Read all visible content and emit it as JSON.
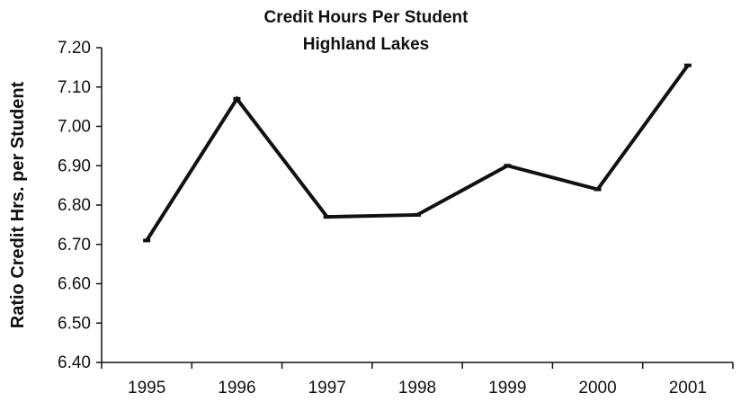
{
  "chart_data": {
    "type": "line",
    "title": [
      "Credit Hours Per Student",
      "Highland Lakes"
    ],
    "xlabel": "",
    "ylabel": "Ratio Credit Hrs. per Student",
    "categories": [
      "1995",
      "1996",
      "1997",
      "1998",
      "1999",
      "2000",
      "2001"
    ],
    "series": [
      {
        "values": [
          6.71,
          7.07,
          6.77,
          6.775,
          6.9,
          6.84,
          7.155
        ]
      }
    ],
    "ylim": [
      6.4,
      7.2
    ],
    "yticks": [
      "6.40",
      "6.50",
      "6.60",
      "6.70",
      "6.80",
      "6.90",
      "7.00",
      "7.10",
      "7.20"
    ],
    "grid": false,
    "colors": {
      "line": "#111111"
    }
  }
}
